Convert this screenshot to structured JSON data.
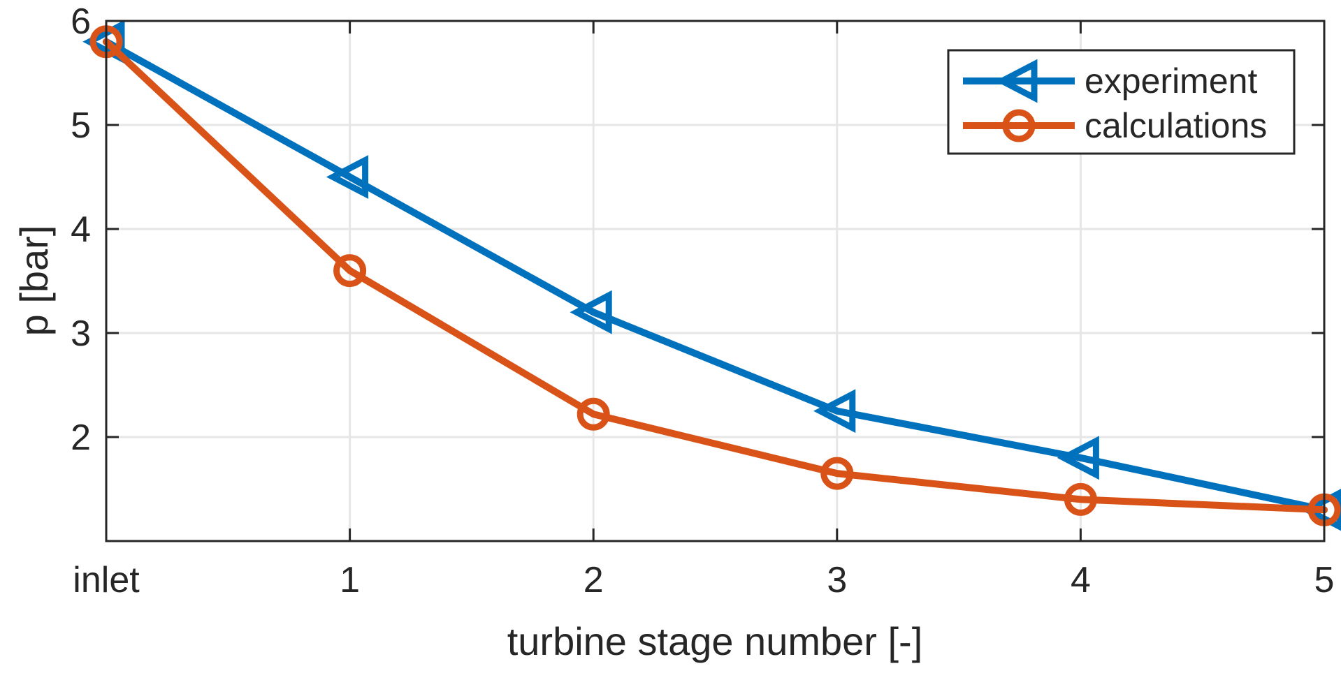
{
  "chart_data": {
    "type": "line",
    "title": "",
    "xlabel": "turbine stage number [-]",
    "ylabel": "p [bar]",
    "categories": [
      "inlet",
      "1",
      "2",
      "3",
      "4",
      "5"
    ],
    "x": [
      0,
      1,
      2,
      3,
      4,
      5
    ],
    "xlim": [
      0,
      5
    ],
    "ylim": [
      1,
      6
    ],
    "yticks": [
      2,
      3,
      4,
      5,
      6
    ],
    "grid": true,
    "legend_position": "top-right",
    "series": [
      {
        "name": "experiment",
        "color": "#0072BD",
        "marker": "triangle-left",
        "values": [
          5.8,
          4.5,
          3.2,
          2.25,
          1.8,
          1.3
        ]
      },
      {
        "name": "calculations",
        "color": "#D95319",
        "marker": "circle",
        "values": [
          5.8,
          3.6,
          2.22,
          1.65,
          1.4,
          1.3
        ]
      }
    ]
  }
}
